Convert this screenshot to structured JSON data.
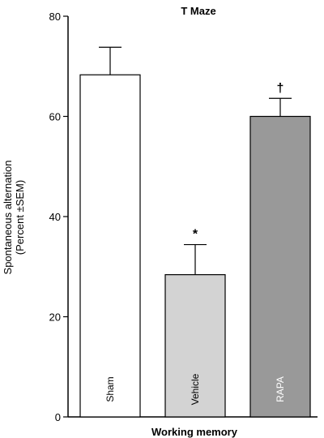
{
  "chart_data": {
    "type": "bar",
    "title": "T Maze",
    "xlabel": "Working memory",
    "ylabel_lines": [
      "Spontaneous alternation",
      "(Percent ±SEM)"
    ],
    "ylim": [
      0,
      80
    ],
    "yticks": [
      0,
      20,
      40,
      60,
      80
    ],
    "grid": false,
    "categories": [
      "Sham",
      "Vehicle",
      "RAPA"
    ],
    "values": [
      68.3,
      28.4,
      60.0
    ],
    "errors": [
      5.5,
      6.0,
      3.6
    ],
    "colors": [
      "#ffffff",
      "#d3d3d3",
      "#999999"
    ],
    "label_colors": [
      "#000000",
      "#000000",
      "#ffffff"
    ],
    "annotations": [
      "",
      "*",
      "†"
    ]
  }
}
